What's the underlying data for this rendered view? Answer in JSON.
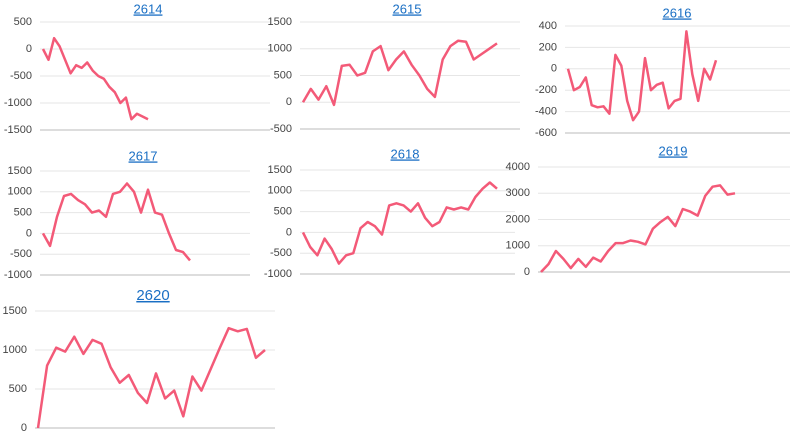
{
  "chart_data": [
    {
      "type": "line",
      "title": "2614",
      "color": "#f35a78",
      "grid": true,
      "ylim": [
        -1500,
        500
      ],
      "yticks": [
        -1500,
        -1000,
        -500,
        0,
        500
      ],
      "values": [
        0,
        -200,
        200,
        50,
        -200,
        -450,
        -300,
        -350,
        -250,
        -400,
        -500,
        -550,
        -700,
        -800,
        -1000,
        -900,
        -1300,
        -1200,
        -1250,
        -1300
      ]
    },
    {
      "type": "line",
      "title": "2615",
      "color": "#f35a78",
      "grid": true,
      "ylim": [
        -500,
        1500
      ],
      "yticks": [
        -500,
        0,
        500,
        1000,
        1500
      ],
      "values": [
        0,
        250,
        50,
        300,
        -50,
        680,
        700,
        500,
        550,
        950,
        1050,
        600,
        800,
        950,
        700,
        500,
        250,
        100,
        800,
        1050,
        1150,
        1130,
        800,
        900,
        1000,
        1100
      ]
    },
    {
      "type": "line",
      "title": "2616",
      "color": "#f35a78",
      "grid": true,
      "ylim": [
        -600,
        400
      ],
      "yticks": [
        -600,
        -400,
        -200,
        0,
        200,
        400
      ],
      "values": [
        0,
        -200,
        -170,
        -80,
        -340,
        -360,
        -350,
        -420,
        130,
        30,
        -300,
        -480,
        -400,
        100,
        -200,
        -150,
        -130,
        -370,
        -300,
        -280,
        350,
        -50,
        -300,
        0,
        -100,
        80
      ]
    },
    {
      "type": "line",
      "title": "2617",
      "color": "#f35a78",
      "grid": true,
      "ylim": [
        -1000,
        1500
      ],
      "yticks": [
        -1000,
        -500,
        0,
        500,
        1000,
        1500
      ],
      "values": [
        0,
        -300,
        400,
        900,
        950,
        800,
        700,
        500,
        550,
        400,
        950,
        1000,
        1200,
        1000,
        500,
        1050,
        500,
        450,
        0,
        -400,
        -450,
        -650
      ]
    },
    {
      "type": "line",
      "title": "2618",
      "color": "#f35a78",
      "grid": true,
      "ylim": [
        -1000,
        1500
      ],
      "yticks": [
        -1000,
        -500,
        0,
        500,
        1000,
        1500
      ],
      "values": [
        0,
        -350,
        -550,
        -150,
        -400,
        -750,
        -550,
        -500,
        100,
        250,
        150,
        -50,
        650,
        700,
        650,
        500,
        700,
        350,
        150,
        250,
        600,
        550,
        600,
        550,
        850,
        1050,
        1200,
        1050
      ]
    },
    {
      "type": "line",
      "title": "2619",
      "color": "#f35a78",
      "grid": true,
      "ylim": [
        0,
        4000
      ],
      "yticks": [
        0,
        1000,
        2000,
        3000,
        4000
      ],
      "values": [
        0,
        300,
        800,
        500,
        150,
        500,
        200,
        550,
        400,
        800,
        1100,
        1100,
        1200,
        1150,
        1050,
        1650,
        1900,
        2100,
        1750,
        2400,
        2300,
        2150,
        2900,
        3250,
        3300,
        2950,
        3000
      ]
    },
    {
      "type": "line",
      "title": "2620",
      "color": "#f35a78",
      "grid": true,
      "ylim": [
        0,
        1500
      ],
      "yticks": [
        0,
        500,
        1000,
        1500
      ],
      "values": [
        0,
        800,
        1030,
        980,
        1170,
        950,
        1130,
        1080,
        780,
        580,
        680,
        450,
        320,
        700,
        380,
        480,
        150,
        660,
        480,
        750,
        1020,
        1280,
        1240,
        1270,
        900,
        1000
      ]
    }
  ]
}
